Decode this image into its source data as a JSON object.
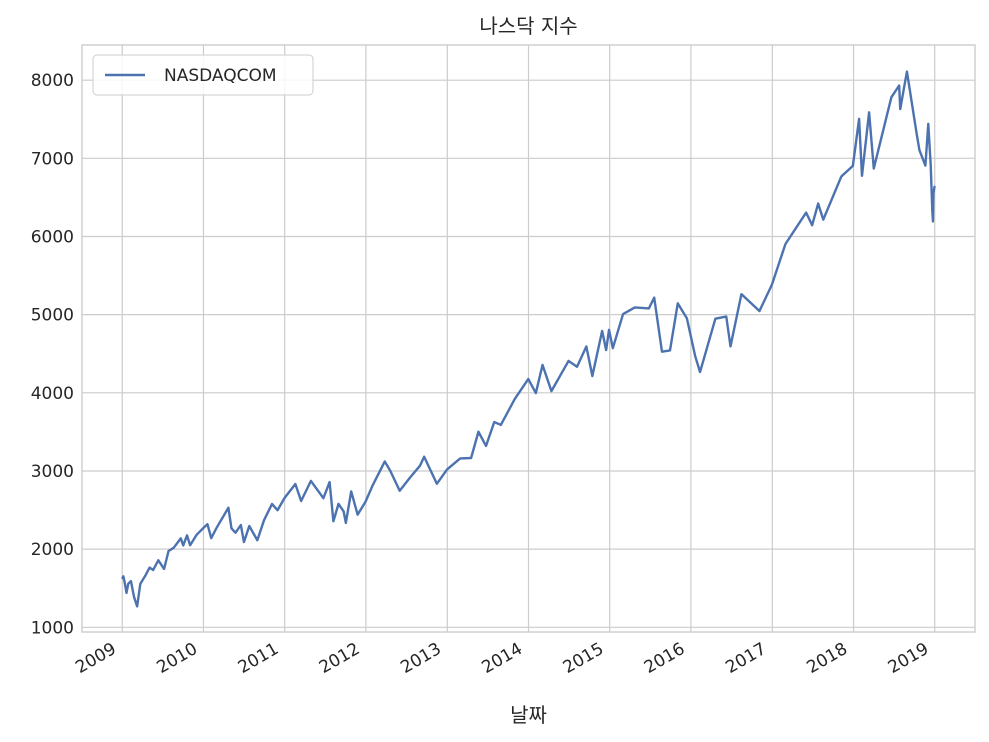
{
  "chart_data": {
    "type": "line",
    "title": "나스닥 지수",
    "xlabel": "날짜",
    "ylabel": "",
    "x_range": [
      "2008-07-04",
      "2019-07-01"
    ],
    "ylim": [
      940,
      8450
    ],
    "x_ticks": [
      "2009",
      "2010",
      "2011",
      "2012",
      "2013",
      "2014",
      "2015",
      "2016",
      "2017",
      "2018",
      "2019"
    ],
    "y_ticks": [
      1000,
      2000,
      3000,
      4000,
      5000,
      6000,
      7000,
      8000
    ],
    "grid": true,
    "legend": "upper-left",
    "series": [
      {
        "name": "NASDAQCOM",
        "color": "#4c72b0",
        "points": [
          [
            "2009-01-02",
            1632
          ],
          [
            "2009-01-06",
            1652
          ],
          [
            "2009-01-12",
            1571
          ],
          [
            "2009-01-20",
            1440
          ],
          [
            "2009-01-28",
            1558
          ],
          [
            "2009-02-09",
            1591
          ],
          [
            "2009-02-23",
            1387
          ],
          [
            "2009-03-09",
            1268
          ],
          [
            "2009-03-23",
            1555
          ],
          [
            "2009-04-13",
            1653
          ],
          [
            "2009-05-04",
            1764
          ],
          [
            "2009-05-20",
            1734
          ],
          [
            "2009-06-12",
            1858
          ],
          [
            "2009-07-08",
            1747
          ],
          [
            "2009-07-28",
            1976
          ],
          [
            "2009-08-20",
            2017
          ],
          [
            "2009-09-21",
            2138
          ],
          [
            "2009-10-02",
            2048
          ],
          [
            "2009-10-19",
            2176
          ],
          [
            "2009-11-02",
            2050
          ],
          [
            "2009-12-01",
            2183
          ],
          [
            "2009-12-31",
            2269
          ],
          [
            "2010-01-19",
            2320
          ],
          [
            "2010-02-05",
            2141
          ],
          [
            "2010-03-01",
            2273
          ],
          [
            "2010-04-23",
            2530
          ],
          [
            "2010-05-07",
            2265
          ],
          [
            "2010-05-25",
            2210
          ],
          [
            "2010-06-18",
            2309
          ],
          [
            "2010-07-02",
            2091
          ],
          [
            "2010-07-26",
            2296
          ],
          [
            "2010-08-31",
            2114
          ],
          [
            "2010-09-30",
            2369
          ],
          [
            "2010-11-05",
            2578
          ],
          [
            "2010-11-30",
            2498
          ],
          [
            "2010-12-31",
            2653
          ],
          [
            "2011-02-18",
            2834
          ],
          [
            "2011-03-16",
            2616
          ],
          [
            "2011-04-29",
            2873
          ],
          [
            "2011-06-24",
            2652
          ],
          [
            "2011-07-22",
            2858
          ],
          [
            "2011-08-08",
            2357
          ],
          [
            "2011-08-31",
            2579
          ],
          [
            "2011-09-23",
            2483
          ],
          [
            "2011-10-03",
            2335
          ],
          [
            "2011-10-27",
            2738
          ],
          [
            "2011-11-25",
            2441
          ],
          [
            "2011-12-30",
            2605
          ],
          [
            "2012-01-31",
            2813
          ],
          [
            "2012-03-26",
            3122
          ],
          [
            "2012-04-20",
            3000
          ],
          [
            "2012-06-01",
            2747
          ],
          [
            "2012-07-20",
            2925
          ],
          [
            "2012-08-31",
            3066
          ],
          [
            "2012-09-19",
            3182
          ],
          [
            "2012-11-15",
            2836
          ],
          [
            "2012-12-31",
            3020
          ],
          [
            "2013-02-28",
            3160
          ],
          [
            "2013-04-18",
            3166
          ],
          [
            "2013-05-21",
            3502
          ],
          [
            "2013-06-24",
            3320
          ],
          [
            "2013-07-31",
            3626
          ],
          [
            "2013-08-30",
            3590
          ],
          [
            "2013-10-31",
            3920
          ],
          [
            "2013-12-31",
            4177
          ],
          [
            "2014-02-03",
            3997
          ],
          [
            "2014-03-05",
            4357
          ],
          [
            "2014-04-14",
            4022
          ],
          [
            "2014-06-30",
            4408
          ],
          [
            "2014-08-07",
            4334
          ],
          [
            "2014-09-18",
            4593
          ],
          [
            "2014-10-15",
            4215
          ],
          [
            "2014-11-28",
            4792
          ],
          [
            "2014-12-16",
            4547
          ],
          [
            "2014-12-29",
            4806
          ],
          [
            "2015-01-15",
            4571
          ],
          [
            "2015-03-02",
            5008
          ],
          [
            "2015-04-24",
            5092
          ],
          [
            "2015-06-26",
            5080
          ],
          [
            "2015-07-20",
            5218
          ],
          [
            "2015-08-24",
            4526
          ],
          [
            "2015-09-29",
            4543
          ],
          [
            "2015-11-03",
            5145
          ],
          [
            "2015-12-14",
            4953
          ],
          [
            "2016-01-20",
            4472
          ],
          [
            "2016-02-11",
            4266
          ],
          [
            "2016-04-20",
            4948
          ],
          [
            "2016-06-08",
            4975
          ],
          [
            "2016-06-27",
            4594
          ],
          [
            "2016-08-15",
            5262
          ],
          [
            "2016-11-04",
            5046
          ],
          [
            "2016-12-30",
            5383
          ],
          [
            "2017-03-01",
            5904
          ],
          [
            "2017-06-02",
            6306
          ],
          [
            "2017-06-29",
            6144
          ],
          [
            "2017-07-26",
            6422
          ],
          [
            "2017-08-18",
            6216
          ],
          [
            "2017-11-07",
            6767
          ],
          [
            "2017-12-29",
            6903
          ],
          [
            "2018-01-26",
            7505
          ],
          [
            "2018-02-08",
            6777
          ],
          [
            "2018-03-12",
            7588
          ],
          [
            "2018-04-02",
            6870
          ],
          [
            "2018-06-20",
            7781
          ],
          [
            "2018-07-25",
            7932
          ],
          [
            "2018-07-30",
            7630
          ],
          [
            "2018-08-29",
            8110
          ],
          [
            "2018-10-11",
            7329
          ],
          [
            "2018-10-24",
            7108
          ],
          [
            "2018-11-20",
            6908
          ],
          [
            "2018-12-03",
            7441
          ],
          [
            "2018-12-14",
            6911
          ],
          [
            "2018-12-21",
            6333
          ],
          [
            "2018-12-24",
            6193
          ],
          [
            "2018-12-26",
            6554
          ],
          [
            "2018-12-31",
            6635
          ]
        ]
      }
    ]
  }
}
